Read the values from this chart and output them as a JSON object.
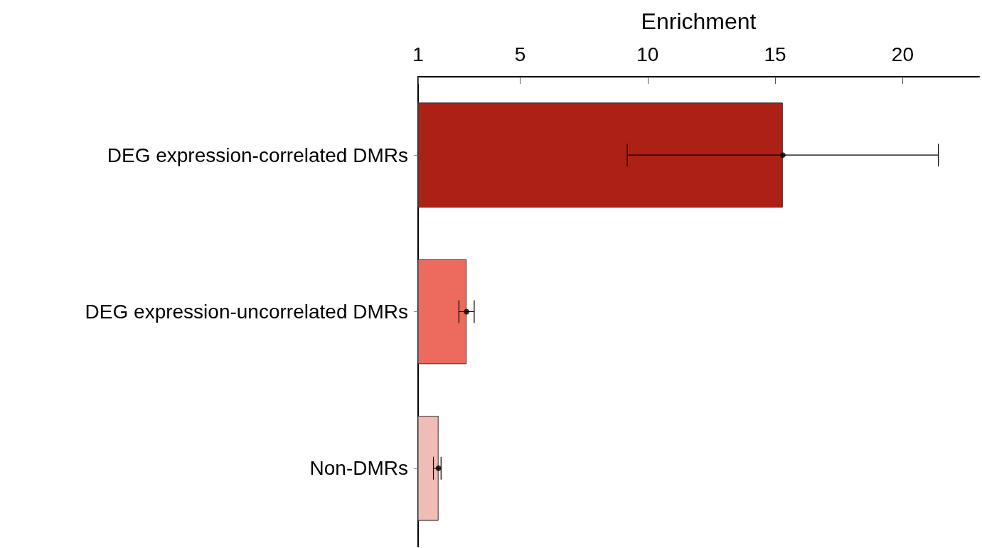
{
  "chart_data": {
    "type": "bar",
    "orientation": "horizontal",
    "xlabel": "Enrichment",
    "categories": [
      "DEG expression-correlated DMRs",
      "DEG expression-uncorrelated DMRs",
      "Non-DMRs"
    ],
    "series": [
      {
        "values": [
          15.3,
          2.9,
          1.8
        ],
        "colors": [
          "#ad2015",
          "#ec6b5e",
          "#efbdb6"
        ],
        "errors": [
          [
            9.2,
            21.4
          ],
          [
            2.6,
            3.2
          ],
          [
            1.6,
            1.9
          ]
        ]
      },
      {
        "type": "scatter",
        "x": [
          "DEG expression-correlated DMRs",
          "DEG expression-uncorrelated DMRs",
          "Non-DMRs"
        ],
        "values": [
          15.3,
          2.9,
          1.8
        ],
        "color": "#000000"
      }
    ],
    "marker": "circle",
    "xlim": [
      1,
      23
    ],
    "xticks": [
      1,
      5,
      10,
      15,
      20
    ],
    "grid": false
  }
}
